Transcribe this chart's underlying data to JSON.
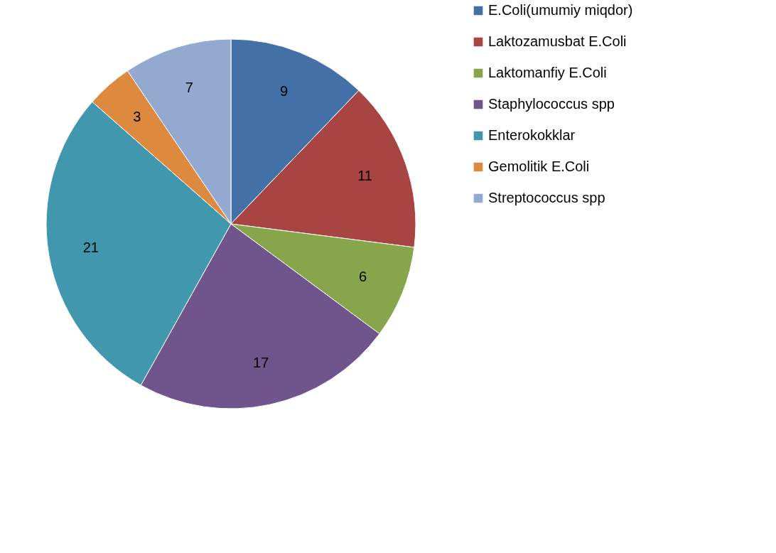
{
  "chart_data": {
    "type": "pie",
    "categories": [
      "E.Coli(umumiy miqdor)",
      "Laktozamusbat E.Coli",
      "Laktomanfiy E.Coli",
      "Staphylococcus spp",
      "Enterokokklar",
      "Gemolitik E.Coli",
      "Streptococcus spp"
    ],
    "values": [
      9,
      11,
      6,
      17,
      21,
      3,
      7
    ],
    "colors": [
      "#4470a8",
      "#a84543",
      "#87a64c",
      "#6f558b",
      "#4097ae",
      "#de8a3e",
      "#93a9cf"
    ],
    "data_labels": true,
    "legend": "right"
  }
}
